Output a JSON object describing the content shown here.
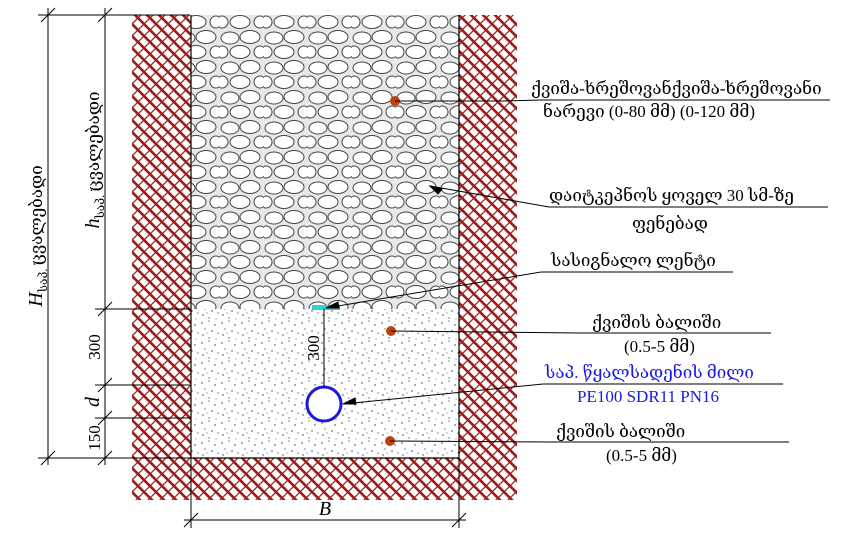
{
  "labels": {
    "gravel_mix_line1": "ქვიშა-ხრეშოვანქვიშა-ხრეშოვანი",
    "gravel_mix_line2": "ნარევი  (0-80 მმ) (0-120 მმ)",
    "compaction_line1": "დაიტკეპნოს ყოველ 30 სმ-ზე",
    "compaction_line2": "ფენებად",
    "warning_tape": "სასიგნალო ლენტი",
    "sand_bed_top_line1": "ქვიშის ბალიში",
    "sand_bed_top_line2": "(0.5-5 მმ)",
    "pipe_line1": "საპ. წყალსადენის მილი",
    "pipe_line2": "PE100 SDR11 PN16",
    "sand_bed_bottom_line1": "ქვიშის ბალიში",
    "sand_bed_bottom_line2": "(0.5-5 მმ)"
  },
  "dimensions": {
    "H_letter": "H",
    "H_sub": "საპ.",
    "H_text": "ცვალებადი",
    "h_letter": "h",
    "h_sub": "საპ.",
    "h_text": "ცვალებადი",
    "d300": "300",
    "d_letter": "d",
    "d150": "150",
    "inner300": "300",
    "B_letter": "B"
  },
  "colors": {
    "soil_hatch": "#a01a1a",
    "pipe": "#1a1adf",
    "tape": "#27d3d3",
    "marker": "#c0430f",
    "gravel_fill": "#e6e6e6"
  }
}
